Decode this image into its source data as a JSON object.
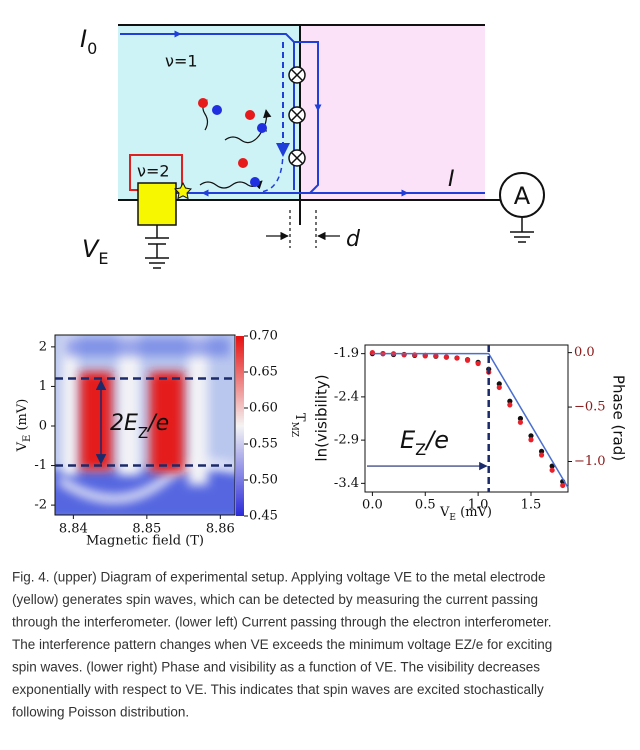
{
  "diagram": {
    "labels": {
      "I0": {
        "main": "I",
        "sub": "0"
      },
      "nu1": "ν=1",
      "nu2": "ν=2",
      "I": "I",
      "A": "A",
      "VE": {
        "main": "V",
        "sub": "E"
      },
      "d": "d"
    }
  },
  "chart_data": [
    {
      "type": "heatmap",
      "xlabel": "Magnetic field (T)",
      "ylabel": {
        "main": "V",
        "sub": "E",
        "rest": " (mV)"
      },
      "xlim": [
        8.8375,
        8.862
      ],
      "ylim": [
        -2.25,
        2.3
      ],
      "xticks": [
        8.84,
        8.85,
        8.86
      ],
      "yticks": [
        -2,
        -1,
        0,
        1,
        2
      ],
      "colorbar": {
        "label": {
          "main": "T",
          "sub": "MZ"
        },
        "lim": [
          0.45,
          0.7
        ],
        "ticks": [
          0.45,
          {
            "value": 0.5,
            "label": "0.50"
          },
          0.55,
          {
            "value": 0.6,
            "label": "0.60"
          },
          0.65,
          {
            "value": 0.7,
            "label": "0.70"
          }
        ]
      },
      "dashed_lines": [
        1.2,
        -1.0
      ],
      "annotation": {
        "main": "2E",
        "sub": "Z",
        "rest": "/e"
      }
    },
    {
      "type": "scatter",
      "xlabel": {
        "main": "V",
        "sub": "E",
        "rest": " (mV)"
      },
      "ylabel": "ln(visibility)",
      "y2label": "Phase (rad)",
      "xlim": [
        -0.07,
        1.85
      ],
      "ylim": [
        -3.5,
        -1.8
      ],
      "y2lim": [
        -1.28,
        0.07
      ],
      "xticks": [
        {
          "value": 0,
          "label": "0.0"
        },
        0.5,
        {
          "value": 1,
          "label": "1.0"
        },
        1.5
      ],
      "yticks": [
        -1.9,
        -2.4,
        -2.9,
        -3.4
      ],
      "y2ticks": [
        {
          "value": 0,
          "label": "0.0"
        },
        {
          "value": -0.5,
          "label": "−0.5"
        },
        {
          "value": -1,
          "label": "−1.0"
        }
      ],
      "x": [
        0,
        0.1,
        0.2,
        0.3,
        0.4,
        0.5,
        0.6,
        0.7,
        0.8,
        0.9,
        1.0,
        1.1,
        1.2,
        1.3,
        1.4,
        1.5,
        1.6,
        1.7,
        1.8
      ],
      "series": [
        {
          "color": "#111111",
          "values": [
            -1.9,
            -1.9,
            -1.91,
            -1.91,
            -1.92,
            -1.92,
            -1.93,
            -1.94,
            -1.95,
            -1.97,
            -2.0,
            -2.08,
            -2.25,
            -2.45,
            -2.65,
            -2.85,
            -3.03,
            -3.2,
            -3.38
          ]
        },
        {
          "color": "#e8202a",
          "axis": "y2",
          "values": [
            0.0,
            -0.01,
            -0.01,
            -0.02,
            -0.02,
            -0.03,
            -0.03,
            -0.04,
            -0.05,
            -0.07,
            -0.1,
            -0.18,
            -0.32,
            -0.48,
            -0.64,
            -0.8,
            -0.94,
            -1.08,
            -1.22
          ]
        }
      ],
      "fit": {
        "x": [
          0,
          1.1,
          1.85
        ],
        "values": [
          -1.9,
          -1.9,
          -3.45
        ],
        "color": "#4a6fd0"
      },
      "vline": 1.1,
      "arrow_y": -3.2,
      "annotation": {
        "main": "E",
        "sub": "Z",
        "rest": "/e"
      }
    }
  ],
  "caption": [
    "Fig. 4. (upper) Diagram of experimental setup. Applying voltage VE to the metal electrode",
    "(yellow) generates spin waves, which can be detected by measuring the current passing",
    "through the interferometer. (lower left) Current passing through the electron interferometer.",
    "The interference pattern changes when VE exceeds the minimum voltage EZ/e for exciting",
    "spin waves. (lower right) Phase and visibility as a function of VE. The visibility decreases",
    "exponentially with respect to VE. This indicates that spin waves are excited stochastically",
    "following Poisson distribution."
  ]
}
